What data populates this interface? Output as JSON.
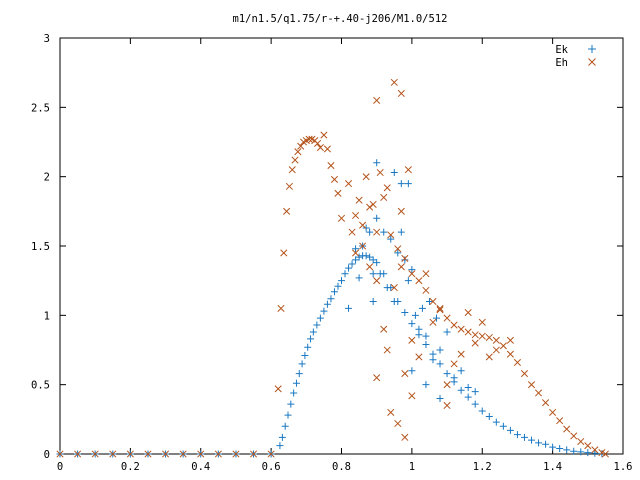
{
  "chart_data": {
    "type": "scatter",
    "title": "m1/n1.5/q1.75/r-+.40-j206/M1.0/512",
    "xlabel": "",
    "ylabel": "",
    "xlim": [
      0,
      1.6
    ],
    "ylim": [
      0,
      3
    ],
    "grid": false,
    "legend_position": "top-right",
    "x_ticks": [
      "0",
      "0.2",
      "0.4",
      "0.6",
      "0.8",
      "1",
      "1.2",
      "1.4",
      "1.6"
    ],
    "y_ticks": [
      "0",
      "0.5",
      "1",
      "1.5",
      "2",
      "2.5",
      "3"
    ],
    "series": [
      {
        "name": "Ek",
        "marker": "plus",
        "color": "#1a78c2",
        "points": [
          [
            0.0,
            0
          ],
          [
            0.05,
            0
          ],
          [
            0.1,
            0
          ],
          [
            0.15,
            0
          ],
          [
            0.2,
            0
          ],
          [
            0.25,
            0
          ],
          [
            0.3,
            0
          ],
          [
            0.35,
            0
          ],
          [
            0.4,
            0
          ],
          [
            0.45,
            0
          ],
          [
            0.5,
            0
          ],
          [
            0.55,
            0
          ],
          [
            0.6,
            0
          ],
          [
            0.625,
            0.06
          ],
          [
            0.632,
            0.12
          ],
          [
            0.64,
            0.2
          ],
          [
            0.648,
            0.28
          ],
          [
            0.656,
            0.36
          ],
          [
            0.664,
            0.44
          ],
          [
            0.672,
            0.51
          ],
          [
            0.68,
            0.58
          ],
          [
            0.688,
            0.65
          ],
          [
            0.696,
            0.71
          ],
          [
            0.704,
            0.77
          ],
          [
            0.712,
            0.83
          ],
          [
            0.72,
            0.88
          ],
          [
            0.73,
            0.93
          ],
          [
            0.74,
            0.98
          ],
          [
            0.75,
            1.03
          ],
          [
            0.76,
            1.08
          ],
          [
            0.77,
            1.12
          ],
          [
            0.78,
            1.17
          ],
          [
            0.79,
            1.21
          ],
          [
            0.8,
            1.25
          ],
          [
            0.81,
            1.3
          ],
          [
            0.82,
            1.34
          ],
          [
            0.83,
            1.37
          ],
          [
            0.84,
            1.4
          ],
          [
            0.85,
            1.42
          ],
          [
            0.86,
            1.43
          ],
          [
            0.87,
            1.43
          ],
          [
            0.88,
            1.42
          ],
          [
            0.89,
            1.4
          ],
          [
            0.9,
            1.38
          ],
          [
            0.92,
            1.3
          ],
          [
            0.94,
            1.2
          ],
          [
            0.96,
            1.1
          ],
          [
            0.98,
            1.02
          ],
          [
            1.0,
            0.94
          ],
          [
            1.02,
            0.86
          ],
          [
            1.04,
            0.79
          ],
          [
            1.06,
            0.72
          ],
          [
            1.08,
            0.65
          ],
          [
            1.1,
            0.58
          ],
          [
            1.12,
            0.52
          ],
          [
            1.14,
            0.46
          ],
          [
            1.16,
            0.41
          ],
          [
            1.18,
            0.36
          ],
          [
            1.2,
            0.31
          ],
          [
            1.22,
            0.27
          ],
          [
            1.24,
            0.23
          ],
          [
            1.26,
            0.2
          ],
          [
            1.28,
            0.17
          ],
          [
            1.3,
            0.14
          ],
          [
            1.32,
            0.12
          ],
          [
            1.34,
            0.1
          ],
          [
            1.36,
            0.08
          ],
          [
            1.38,
            0.07
          ],
          [
            1.4,
            0.05
          ],
          [
            1.42,
            0.04
          ],
          [
            1.44,
            0.03
          ],
          [
            1.46,
            0.02
          ],
          [
            1.48,
            0.015
          ],
          [
            1.5,
            0.01
          ],
          [
            1.52,
            0.005
          ],
          [
            1.54,
            0.002
          ],
          [
            0.82,
            1.05
          ],
          [
            0.84,
            1.48
          ],
          [
            0.86,
            1.5
          ],
          [
            0.87,
            1.63
          ],
          [
            0.88,
            1.6
          ],
          [
            0.89,
            1.3
          ],
          [
            0.9,
            1.7
          ],
          [
            0.91,
            1.3
          ],
          [
            0.92,
            1.6
          ],
          [
            0.93,
            1.2
          ],
          [
            0.94,
            1.55
          ],
          [
            0.95,
            1.1
          ],
          [
            0.96,
            1.45
          ],
          [
            0.97,
            1.6
          ],
          [
            0.98,
            1.4
          ],
          [
            0.99,
            1.25
          ],
          [
            1.0,
            1.33
          ],
          [
            1.01,
            1.0
          ],
          [
            1.02,
            0.9
          ],
          [
            1.03,
            1.05
          ],
          [
            1.04,
            0.85
          ],
          [
            1.05,
            1.1
          ],
          [
            1.06,
            0.68
          ],
          [
            1.07,
            0.98
          ],
          [
            1.08,
            0.75
          ],
          [
            1.1,
            0.88
          ],
          [
            1.12,
            0.55
          ],
          [
            1.14,
            0.6
          ],
          [
            1.16,
            0.48
          ],
          [
            0.95,
            2.03
          ],
          [
            0.97,
            1.95
          ],
          [
            0.99,
            1.95
          ],
          [
            0.9,
            2.1
          ],
          [
            0.85,
            1.27
          ],
          [
            0.89,
            1.1
          ],
          [
            1.0,
            0.6
          ],
          [
            1.04,
            0.5
          ],
          [
            1.08,
            0.4
          ],
          [
            1.18,
            0.45
          ]
        ]
      },
      {
        "name": "Eh",
        "marker": "x",
        "color": "#b5531a",
        "points": [
          [
            0.0,
            0
          ],
          [
            0.05,
            0
          ],
          [
            0.1,
            0
          ],
          [
            0.15,
            0
          ],
          [
            0.2,
            0
          ],
          [
            0.25,
            0
          ],
          [
            0.3,
            0
          ],
          [
            0.35,
            0
          ],
          [
            0.4,
            0
          ],
          [
            0.45,
            0
          ],
          [
            0.5,
            0
          ],
          [
            0.55,
            0
          ],
          [
            0.6,
            0
          ],
          [
            0.62,
            0.47
          ],
          [
            0.628,
            1.05
          ],
          [
            0.636,
            1.45
          ],
          [
            0.644,
            1.75
          ],
          [
            0.652,
            1.93
          ],
          [
            0.66,
            2.05
          ],
          [
            0.668,
            2.12
          ],
          [
            0.676,
            2.18
          ],
          [
            0.684,
            2.22
          ],
          [
            0.692,
            2.25
          ],
          [
            0.7,
            2.26
          ],
          [
            0.708,
            2.27
          ],
          [
            0.716,
            2.27
          ],
          [
            0.724,
            2.26
          ],
          [
            0.732,
            2.24
          ],
          [
            0.74,
            2.21
          ],
          [
            0.75,
            2.3
          ],
          [
            0.76,
            2.2
          ],
          [
            0.77,
            2.08
          ],
          [
            0.78,
            1.98
          ],
          [
            0.79,
            1.88
          ],
          [
            0.8,
            1.7
          ],
          [
            0.82,
            1.95
          ],
          [
            0.83,
            1.6
          ],
          [
            0.84,
            1.72
          ],
          [
            0.85,
            1.83
          ],
          [
            0.86,
            1.5
          ],
          [
            0.88,
            1.78
          ],
          [
            0.9,
            1.6
          ],
          [
            0.92,
            1.85
          ],
          [
            0.94,
            1.58
          ],
          [
            0.96,
            1.48
          ],
          [
            0.98,
            1.41
          ],
          [
            1.0,
            1.3
          ],
          [
            1.02,
            1.25
          ],
          [
            1.04,
            1.18
          ],
          [
            1.06,
            1.1
          ],
          [
            1.08,
            1.04
          ],
          [
            1.1,
            0.98
          ],
          [
            1.12,
            0.93
          ],
          [
            1.14,
            0.9
          ],
          [
            1.16,
            0.88
          ],
          [
            1.18,
            0.86
          ],
          [
            1.2,
            0.85
          ],
          [
            1.22,
            0.84
          ],
          [
            1.24,
            0.82
          ],
          [
            1.26,
            0.78
          ],
          [
            1.28,
            0.72
          ],
          [
            1.3,
            0.66
          ],
          [
            1.32,
            0.58
          ],
          [
            1.34,
            0.5
          ],
          [
            1.36,
            0.44
          ],
          [
            1.38,
            0.37
          ],
          [
            1.4,
            0.3
          ],
          [
            1.42,
            0.24
          ],
          [
            1.44,
            0.18
          ],
          [
            1.46,
            0.13
          ],
          [
            1.48,
            0.09
          ],
          [
            1.5,
            0.06
          ],
          [
            1.52,
            0.03
          ],
          [
            1.54,
            0.01
          ],
          [
            1.55,
            0.0
          ],
          [
            0.95,
            2.68
          ],
          [
            0.97,
            2.6
          ],
          [
            0.9,
            2.55
          ],
          [
            0.87,
            2.0
          ],
          [
            0.89,
            1.8
          ],
          [
            0.91,
            2.03
          ],
          [
            0.93,
            1.92
          ],
          [
            0.97,
            1.75
          ],
          [
            0.99,
            2.05
          ],
          [
            0.86,
            1.65
          ],
          [
            0.88,
            1.35
          ],
          [
            0.84,
            1.45
          ],
          [
            0.9,
            1.25
          ],
          [
            0.92,
            0.9
          ],
          [
            0.93,
            0.75
          ],
          [
            0.95,
            1.2
          ],
          [
            0.97,
            1.35
          ],
          [
            0.98,
            0.58
          ],
          [
            1.0,
            0.82
          ],
          [
            1.02,
            0.7
          ],
          [
            1.04,
            1.3
          ],
          [
            1.06,
            0.95
          ],
          [
            1.08,
            1.05
          ],
          [
            1.1,
            0.5
          ],
          [
            1.12,
            0.65
          ],
          [
            1.14,
            0.72
          ],
          [
            1.16,
            1.02
          ],
          [
            1.18,
            0.8
          ],
          [
            1.2,
            0.95
          ],
          [
            0.9,
            0.55
          ],
          [
            0.94,
            0.3
          ],
          [
            0.96,
            0.22
          ],
          [
            0.98,
            0.12
          ],
          [
            1.0,
            0.42
          ],
          [
            1.1,
            0.35
          ],
          [
            1.22,
            0.7
          ],
          [
            1.24,
            0.75
          ],
          [
            1.28,
            0.82
          ]
        ]
      }
    ]
  }
}
